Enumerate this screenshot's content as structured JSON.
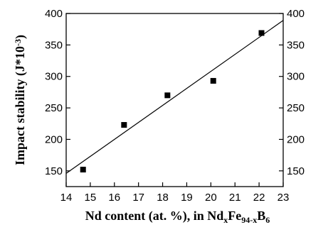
{
  "chart_data": {
    "type": "scatter",
    "title": "",
    "xlabel": {
      "parts": [
        {
          "text": "Nd content (at. %), in Nd"
        },
        {
          "text": "x",
          "sub": true
        },
        {
          "text": "Fe"
        },
        {
          "text": "94-x",
          "sub": true
        },
        {
          "text": "B"
        },
        {
          "text": "6",
          "sub": true
        }
      ]
    },
    "ylabel": {
      "parts": [
        {
          "text": "Impact stability (J*10"
        },
        {
          "text": "-3",
          "sup": true
        },
        {
          "text": ")"
        }
      ]
    },
    "xlim": [
      14,
      23
    ],
    "ylim": [
      125,
      400
    ],
    "xticks": [
      14,
      15,
      16,
      17,
      18,
      19,
      20,
      21,
      22,
      23
    ],
    "yticks": [
      150,
      200,
      250,
      300,
      350,
      400
    ],
    "right_axis_ticks": true,
    "grid": false,
    "series": [
      {
        "marker": "square",
        "color": "#000000",
        "points": [
          {
            "x": 14.7,
            "y": 152
          },
          {
            "x": 16.4,
            "y": 223
          },
          {
            "x": 18.2,
            "y": 270
          },
          {
            "x": 20.1,
            "y": 293
          },
          {
            "x": 22.1,
            "y": 369
          }
        ]
      }
    ],
    "fit_line": {
      "color": "#000000",
      "points": [
        {
          "x": 14.0,
          "y": 146
        },
        {
          "x": 23.0,
          "y": 389
        }
      ]
    }
  }
}
